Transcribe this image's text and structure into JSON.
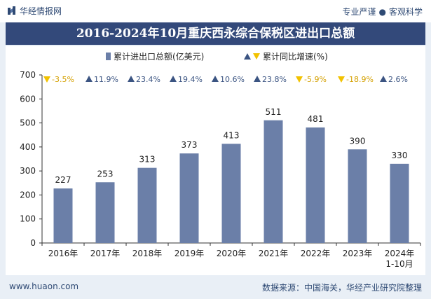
{
  "header": {
    "brand": "华经情报网",
    "tagline_left": "专业严谨",
    "tagline_sep": "●",
    "tagline_right": "客观科学"
  },
  "footer": {
    "url": "www.huaon.com",
    "source": "数据来源：中国海关，华经产业研究院整理"
  },
  "colors": {
    "bar": "#6b7fa8",
    "title_bg": "#33497a",
    "up": "#3b5482",
    "down": "#f2c200",
    "page_bg": "#e9eff6"
  },
  "chart_data": {
    "type": "bar",
    "title": "2016-2024年10月重庆西永综合保税区进出口总额",
    "categories": [
      "2016年",
      "2017年",
      "2018年",
      "2019年",
      "2020年",
      "2021年",
      "2022年",
      "2023年",
      "2024年\n1-10月"
    ],
    "series": [
      {
        "name": "累计进出口总额(亿美元)",
        "values": [
          227,
          253,
          313,
          373,
          413,
          511,
          481,
          390,
          330
        ]
      }
    ],
    "growth": {
      "name": "累计同比增速(%)",
      "values": [
        -3.5,
        11.9,
        23.4,
        19.4,
        10.6,
        23.8,
        -5.9,
        -18.9,
        2.6
      ],
      "labels": [
        "-3.5%",
        "11.9%",
        "23.4%",
        "19.4%",
        "10.6%",
        "23.8%",
        "-5.9%",
        "-18.9%",
        "2.6%"
      ]
    },
    "ylim": [
      0,
      700
    ],
    "yticks": [
      0,
      100,
      200,
      300,
      400,
      500,
      600,
      700
    ],
    "xlabel": "",
    "ylabel": "",
    "legend": "top-center",
    "grid": false
  }
}
